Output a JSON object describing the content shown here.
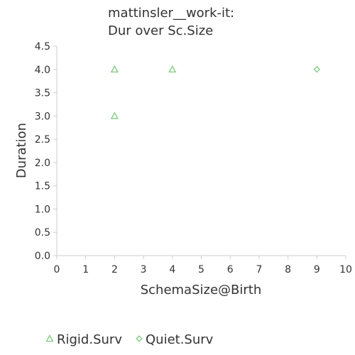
{
  "chart_data": {
    "type": "scatter",
    "title_line1": "mattinsler__work-it:",
    "title_line2": "Dur over Sc.Size",
    "xlabel": "SchemaSize@Birth",
    "ylabel": "Duration",
    "xlim": [
      0,
      10
    ],
    "ylim": [
      0,
      4.5
    ],
    "xticks": [
      "0",
      "1",
      "2",
      "3",
      "4",
      "5",
      "6",
      "7",
      "8",
      "9",
      "10"
    ],
    "yticks": [
      "0.0",
      "0.5",
      "1.0",
      "1.5",
      "2.0",
      "2.5",
      "3.0",
      "3.5",
      "4.0",
      "4.5"
    ],
    "grid": false,
    "legend_position": "bottom",
    "series": [
      {
        "name": "Rigid.Surv",
        "marker": "triangle",
        "color": "#7fc97f",
        "points": [
          {
            "x": 2,
            "y": 4.0
          },
          {
            "x": 2,
            "y": 3.0
          },
          {
            "x": 4,
            "y": 4.0
          }
        ]
      },
      {
        "name": "Quiet.Surv",
        "marker": "diamond",
        "color": "#7fc97f",
        "points": [
          {
            "x": 9,
            "y": 4.0
          }
        ]
      }
    ]
  }
}
